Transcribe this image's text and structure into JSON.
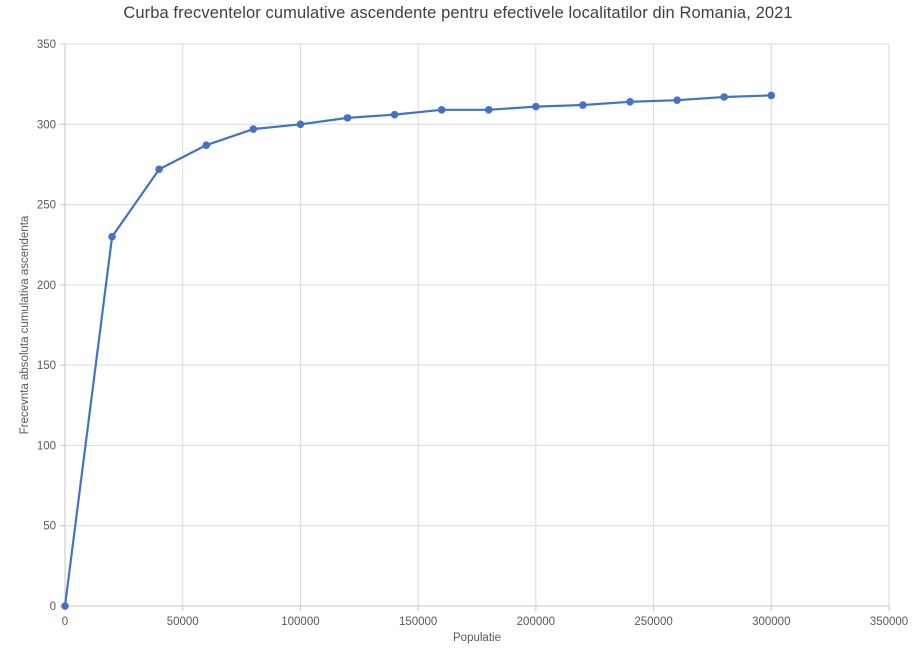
{
  "page": {
    "background": "#ffffff"
  },
  "chart_data": {
    "type": "line",
    "title": "Curba frecventelor cumulative ascendente pentru efectivele localitatilor din Romania, 2021",
    "xlabel": "Populatie",
    "ylabel": "Frecevnta absoluta cumulativa ascendenta",
    "x": [
      0,
      20000,
      40000,
      60000,
      80000,
      100000,
      120000,
      140000,
      160000,
      180000,
      200000,
      220000,
      240000,
      260000,
      280000,
      300000
    ],
    "y": [
      0,
      230,
      272,
      287,
      297,
      300,
      304,
      306,
      309,
      309,
      311,
      312,
      314,
      315,
      317,
      318
    ],
    "xlim": [
      0,
      350000
    ],
    "ylim": [
      0,
      350
    ],
    "x_ticks": [
      0,
      50000,
      100000,
      150000,
      200000,
      250000,
      300000,
      350000
    ],
    "y_ticks": [
      0,
      50,
      100,
      150,
      200,
      250,
      300,
      350
    ],
    "grid": true,
    "legend": "none",
    "line_color": "#4472C4",
    "marker_color": "#4472C4",
    "grid_color": "#DADADA",
    "axis_color": "#C6C6C6",
    "tick_label_color": "#595959",
    "title_color": "#3f3f3f"
  }
}
